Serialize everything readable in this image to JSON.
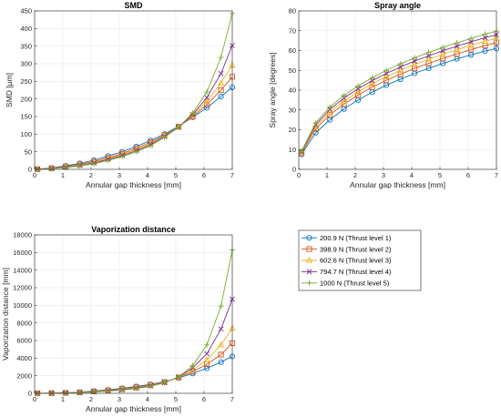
{
  "chart_data": [
    {
      "type": "line",
      "title": "SMD",
      "xlabel": "Annular gap thickness [mm]",
      "ylabel": "SMD [μm]",
      "xlim": [
        0,
        7
      ],
      "ylim": [
        0,
        450
      ],
      "xticks": [
        0,
        1,
        2,
        3,
        4,
        5,
        6,
        7
      ],
      "yticks": [
        0,
        50,
        100,
        150,
        200,
        250,
        300,
        350,
        400,
        450
      ],
      "grid": true,
      "x": [
        0.1,
        0.6,
        1.1,
        1.6,
        2.1,
        2.6,
        3.1,
        3.6,
        4.1,
        4.6,
        5.1,
        5.6,
        6.1,
        6.6,
        7.0
      ],
      "series": [
        {
          "name": "200.9 N (Thrust level 1)",
          "values": [
            0.5,
            4,
            10,
            17,
            26,
            38,
            50,
            65,
            82,
            100,
            122,
            148,
            175,
            207,
            233
          ]
        },
        {
          "name": "398.9 N (Thrust level 2)",
          "values": [
            0.4,
            3,
            8,
            14,
            22,
            33,
            45,
            60,
            77,
            97,
            121,
            150,
            184,
            225,
            263
          ]
        },
        {
          "name": "602.6 N (Thrust level 3)",
          "values": [
            0.3,
            2.5,
            7,
            12,
            20,
            30,
            42,
            56,
            73,
            95,
            120,
            153,
            193,
            245,
            296
          ]
        },
        {
          "name": "794.7 N (Thrust level 4)",
          "values": [
            0.3,
            2,
            6,
            11,
            18,
            28,
            39,
            53,
            70,
            93,
            120,
            156,
            204,
            272,
            352
          ]
        },
        {
          "name": "1000 N (Thrust level 5)",
          "values": [
            0.2,
            1.8,
            5,
            10,
            16,
            25,
            36,
            50,
            67,
            91,
            120,
            160,
            220,
            318,
            443
          ]
        }
      ]
    },
    {
      "type": "line",
      "title": "Spray angle",
      "xlabel": "Annular gap thickness [mm]",
      "ylabel": "Spray angle [degrees]",
      "xlim": [
        0,
        7
      ],
      "ylim": [
        0,
        80
      ],
      "xticks": [
        0,
        1,
        2,
        3,
        4,
        5,
        6,
        7
      ],
      "yticks": [
        0,
        10,
        20,
        30,
        40,
        50,
        60,
        70,
        80
      ],
      "grid": true,
      "x": [
        0.1,
        0.6,
        1.1,
        1.6,
        2.1,
        2.6,
        3.1,
        3.6,
        4.1,
        4.6,
        5.1,
        5.6,
        6.1,
        6.6,
        7.0
      ],
      "series": [
        {
          "name": "200.9 N (Thrust level 1)",
          "values": [
            7.5,
            18.5,
            25,
            30.5,
            35,
            39,
            42.5,
            45.5,
            48.5,
            51,
            53.5,
            55.8,
            57.8,
            59.8,
            61
          ]
        },
        {
          "name": "398.9 N (Thrust level 2)",
          "values": [
            8.2,
            20.5,
            27.5,
            33,
            37.5,
            41.5,
            45,
            48,
            51,
            53.5,
            56,
            58.3,
            60.5,
            62.5,
            64
          ]
        },
        {
          "name": "602.6 N (Thrust level 3)",
          "values": [
            8.6,
            21.5,
            29,
            34.5,
            39.2,
            43.3,
            46.8,
            50,
            53,
            55.6,
            58.1,
            60.4,
            62.6,
            64.7,
            66.2
          ]
        },
        {
          "name": "794.7 N (Thrust level 4)",
          "values": [
            8.9,
            22.5,
            30.3,
            36,
            40.7,
            44.8,
            48.4,
            51.7,
            54.7,
            57.3,
            59.9,
            62.2,
            64.4,
            66.5,
            68
          ]
        },
        {
          "name": "1000 N (Thrust level 5)",
          "values": [
            9.2,
            23.5,
            31.5,
            37.3,
            42.1,
            46.3,
            50,
            53.3,
            56.3,
            59,
            61.6,
            63.9,
            66.1,
            68.3,
            69.8
          ]
        }
      ]
    },
    {
      "type": "line",
      "title": "Vaporization distance",
      "xlabel": "Annular gap thickness [mm]",
      "ylabel": "Vaporization distance [mm]",
      "xlim": [
        0,
        7
      ],
      "ylim": [
        0,
        18000
      ],
      "xticks": [
        0,
        1,
        2,
        3,
        4,
        5,
        6,
        7
      ],
      "yticks": [
        0,
        2000,
        4000,
        6000,
        8000,
        10000,
        12000,
        14000,
        16000,
        18000
      ],
      "grid": true,
      "x": [
        0.1,
        0.6,
        1.1,
        1.6,
        2.1,
        2.6,
        3.1,
        3.6,
        4.1,
        4.6,
        5.1,
        5.6,
        6.1,
        6.6,
        7.0
      ],
      "series": [
        {
          "name": "200.9 N (Thrust level 1)",
          "values": [
            0,
            20,
            60,
            140,
            260,
            400,
            580,
            780,
            1020,
            1320,
            1750,
            2250,
            2850,
            3550,
            4200
          ]
        },
        {
          "name": "398.9 N (Thrust level 2)",
          "values": [
            0,
            15,
            50,
            115,
            215,
            340,
            500,
            700,
            950,
            1280,
            1800,
            2450,
            3300,
            4400,
            5700
          ]
        },
        {
          "name": "602.6 N (Thrust level 3)",
          "values": [
            0,
            12,
            42,
            100,
            190,
            300,
            450,
            640,
            890,
            1250,
            1820,
            2650,
            3800,
            5500,
            7400
          ]
        },
        {
          "name": "794.7 N (Thrust level 4)",
          "values": [
            0,
            10,
            36,
            88,
            168,
            270,
            410,
            590,
            840,
            1220,
            1850,
            2900,
            4500,
            7300,
            10700
          ]
        },
        {
          "name": "1000 N (Thrust level 5)",
          "values": [
            0,
            8,
            30,
            76,
            148,
            240,
            370,
            540,
            790,
            1190,
            1880,
            3150,
            5500,
            9900,
            16300
          ]
        }
      ]
    }
  ],
  "legend": {
    "entries": [
      {
        "label": "200.9 N (Thrust level 1)",
        "color": "#0072BD",
        "marker": "circle"
      },
      {
        "label": "398.9 N (Thrust level 2)",
        "color": "#D95319",
        "marker": "square"
      },
      {
        "label": "602.6 N (Thrust level 3)",
        "color": "#EDB120",
        "marker": "triangle"
      },
      {
        "label": "794.7 N (Thrust level 4)",
        "color": "#7E2F8E",
        "marker": "cross"
      },
      {
        "label": "1000 N (Thrust level 5)",
        "color": "#77AC30",
        "marker": "plus"
      }
    ]
  },
  "colors": {
    "series": [
      "#0072BD",
      "#D95319",
      "#EDB120",
      "#7E2F8E",
      "#77AC30"
    ],
    "grid": "#e6e6e6",
    "axis": "#262626"
  }
}
